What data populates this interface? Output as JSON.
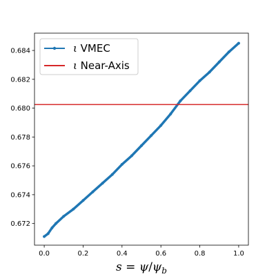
{
  "chart_data": {
    "type": "line",
    "title": "",
    "xlabel": "s = ψ/ψ_b",
    "xlabel_parts": {
      "s": "s",
      "eq": " = ",
      "psi": "ψ",
      "slash": "/",
      "psi_b": "ψ",
      "sub_b": "b"
    },
    "ylabel": "",
    "xlim": [
      -0.05,
      1.05
    ],
    "ylim": [
      0.6705,
      0.6852
    ],
    "xticks": [
      0.0,
      0.2,
      0.4,
      0.6,
      0.8,
      1.0
    ],
    "xtick_labels": [
      "0.0",
      "0.2",
      "0.4",
      "0.6",
      "0.8",
      "1.0"
    ],
    "yticks": [
      0.672,
      0.674,
      0.676,
      0.678,
      0.68,
      0.682,
      0.684
    ],
    "ytick_labels": [
      "0.672",
      "0.674",
      "0.676",
      "0.678",
      "0.680",
      "0.682",
      "0.684"
    ],
    "grid": false,
    "legend_position": "top-left",
    "legend": [
      {
        "symbol": "ι",
        "label": "VMEC",
        "color": "#1f77b4",
        "marker": "dot"
      },
      {
        "symbol": "ι",
        "label": "Near-Axis",
        "color": "#d62728",
        "marker": "none"
      }
    ],
    "series": [
      {
        "name": "ι VMEC",
        "color": "#1f77b4",
        "x": [
          0.0,
          0.02,
          0.04,
          0.06,
          0.1,
          0.15,
          0.2,
          0.25,
          0.3,
          0.35,
          0.4,
          0.45,
          0.5,
          0.55,
          0.6,
          0.65,
          0.7,
          0.75,
          0.8,
          0.85,
          0.9,
          0.95,
          1.0
        ],
        "y": [
          0.6711,
          0.6713,
          0.6717,
          0.672,
          0.6725,
          0.673,
          0.6736,
          0.6742,
          0.6748,
          0.6754,
          0.6761,
          0.6767,
          0.6774,
          0.6781,
          0.6788,
          0.6796,
          0.6805,
          0.6812,
          0.6819,
          0.6825,
          0.6832,
          0.6839,
          0.6845
        ]
      },
      {
        "name": "ι Near-Axis",
        "color": "#d62728",
        "hline": 0.68025
      }
    ]
  }
}
